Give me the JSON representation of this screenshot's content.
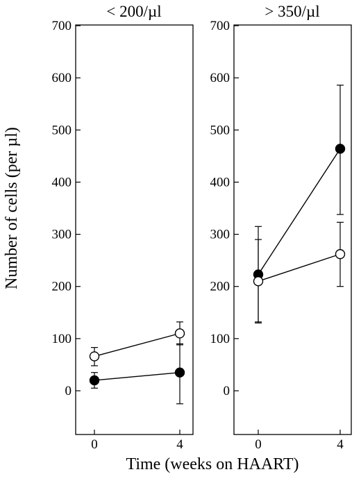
{
  "chart_data": {
    "type": "line",
    "ylabel": "Number of cells (per µl)",
    "xlabel": "Time (weeks on HAART)",
    "panels": [
      {
        "title": "< 200/µl",
        "x": [
          0,
          4
        ],
        "x_ticks": [
          "0",
          "4"
        ],
        "ylim": [
          0,
          700
        ],
        "y_ticks": [
          "0",
          "100",
          "200",
          "300",
          "400",
          "500",
          "600",
          "700"
        ],
        "series": [
          {
            "marker": "filled-circle",
            "values": [
              20,
              35
            ],
            "err_low": [
              5,
              -25
            ],
            "err_high": [
              35,
              90
            ]
          },
          {
            "marker": "open-circle",
            "values": [
              66,
              110
            ],
            "err_low": [
              48,
              88
            ],
            "err_high": [
              83,
              132
            ]
          }
        ]
      },
      {
        "title": "> 350/µl",
        "x": [
          0,
          4
        ],
        "x_ticks": [
          "0",
          "4"
        ],
        "ylim": [
          0,
          700
        ],
        "y_ticks": [
          "0",
          "100",
          "200",
          "300",
          "400",
          "500",
          "600",
          "700"
        ],
        "series": [
          {
            "marker": "filled-circle",
            "values": [
              223,
              464
            ],
            "err_low": [
              132,
              338
            ],
            "err_high": [
              315,
              586
            ]
          },
          {
            "marker": "open-circle",
            "values": [
              210,
              262
            ],
            "err_low": [
              130,
              200
            ],
            "err_high": [
              290,
              323
            ]
          }
        ]
      }
    ]
  }
}
